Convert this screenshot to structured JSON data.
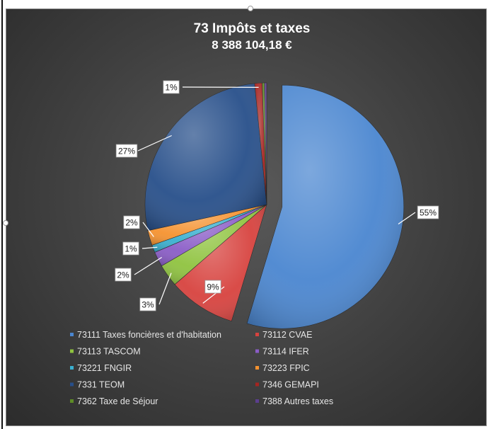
{
  "chart_data": {
    "type": "pie",
    "title": "73 Impôts et taxes",
    "subtitle": "8 388 104,18 €",
    "slices": [
      {
        "name": "73111 Taxes foncières et d'habitation",
        "value": 55,
        "label": "55%",
        "color": "#4a86d0",
        "exploded": true
      },
      {
        "name": "73112 CVAE",
        "value": 9,
        "label": "9%",
        "color": "#d7423e"
      },
      {
        "name": "73113 TASCOM",
        "value": 3,
        "label": "3%",
        "color": "#8fc33f"
      },
      {
        "name": "73114 IFER",
        "value": 2,
        "label": "2%",
        "color": "#8a5cc7"
      },
      {
        "name": "73221 FNGIR",
        "value": 1,
        "label": "1%",
        "color": "#3ab0d0"
      },
      {
        "name": "73223 FPIC",
        "value": 2,
        "label": "2%",
        "color": "#f5922f"
      },
      {
        "name": "7331 TEOM",
        "value": 27,
        "label": "27%",
        "color": "#274f8a"
      },
      {
        "name": "7346 GEMAPI",
        "value": 1,
        "label": "1%",
        "color": "#a52420"
      },
      {
        "name": "7362 Taxe de Séjour",
        "value": 0.3,
        "label": "",
        "color": "#5e8c26"
      },
      {
        "name": "7388 Autres taxes",
        "value": 0.3,
        "label": "",
        "color": "#5b3e8e"
      }
    ],
    "legend_placement": "bottom"
  }
}
